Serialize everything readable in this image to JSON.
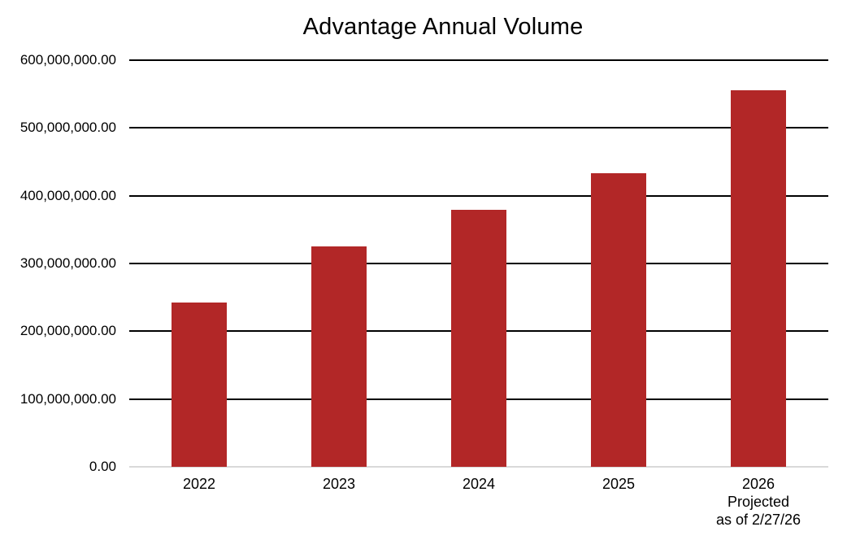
{
  "title": "Advantage Annual Volume",
  "colors": {
    "bar": "#B22727",
    "gridline": "#000000",
    "baseline": "#D9D9D9",
    "text": "#000000",
    "background": "#FFFFFF"
  },
  "chart_data": {
    "type": "bar",
    "title": "Advantage Annual Volume",
    "categories": [
      "2022",
      "2023",
      "2024",
      "2025",
      "2026"
    ],
    "values": [
      243000000,
      325000000,
      379000000,
      433000000,
      556000000
    ],
    "x_tick_labels": [
      [
        "2022"
      ],
      [
        "2023"
      ],
      [
        "2024"
      ],
      [
        "2025"
      ],
      [
        "2026",
        "Projected",
        "as of 2/27/26"
      ]
    ],
    "ytick_labels": [
      "0.00",
      "100,000,000.00",
      "200,000,000.00",
      "300,000,000.00",
      "400,000,000.00",
      "500,000,000.00",
      "600,000,000.00"
    ],
    "ytick_interval": 100000000,
    "ylim": [
      0,
      600000000
    ],
    "xlabel": "",
    "ylabel": "",
    "grid": true,
    "legend": false
  }
}
